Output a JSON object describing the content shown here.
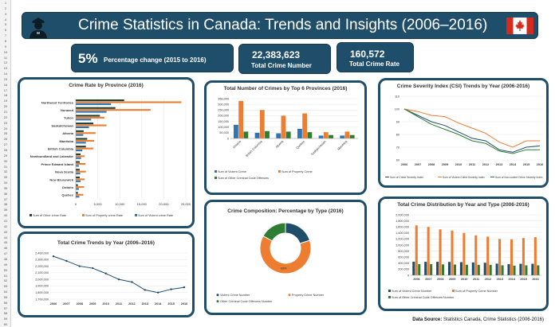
{
  "header": {
    "title": "Crime Statistics in Canada: Trends and Insights (2006–2016)"
  },
  "kpis": {
    "pct_value": "5%",
    "pct_label": "Percentage change (2015 to 2016)",
    "total_number_value": "22,383,623",
    "total_number_label": "Total Crime Number",
    "total_rate_value": "160,572",
    "total_rate_label": "Total Crime Rate"
  },
  "colors": {
    "navy": "#1f4e6b",
    "blue": "#2e75b6",
    "orange": "#ed7d31",
    "green": "#2e7d32",
    "dark_green": "#1b4332"
  },
  "row_numbers": [
    "1",
    "2",
    "3",
    "4",
    "5",
    "6",
    "7",
    "8",
    "9",
    "10",
    "11",
    "12",
    "13",
    "14",
    "15",
    "16",
    "17",
    "18",
    "19",
    "20",
    "21",
    "22",
    "23",
    "24",
    "25",
    "26",
    "27",
    "28",
    "29",
    "30",
    "31",
    "32",
    "33",
    "34",
    "35",
    "36",
    "37",
    "38",
    "39",
    "40",
    "41",
    "42",
    "43",
    "44",
    "45",
    "46",
    "47",
    "48",
    "49",
    "50",
    "51",
    "52",
    "53",
    "54",
    "55",
    "56",
    "57",
    "58",
    "59",
    "60"
  ],
  "source": {
    "label": "Data Source:",
    "text": "Statistics Canada, Crime Statistics (2006-2016)"
  },
  "chart_data": [
    {
      "id": "province_rate",
      "type": "bar",
      "orientation": "horizontal",
      "title": "Crime Rate by Province (2016)",
      "categories": [
        "Northwest Territories",
        "Nunavut",
        "Yukon",
        "Saskatchewan",
        "Alberta",
        "Manitoba",
        "British Columbia",
        "Newfoundland and Labrador",
        "Prince Edward Island",
        "Nova Scotia",
        "New Brunswick",
        "Ontario",
        "Quebec"
      ],
      "series": [
        {
          "name": "Sum of Other crime Rate",
          "color": "#1b4332",
          "values": [
            11000,
            9000,
            5500,
            4000,
            1800,
            2600,
            2300,
            1100,
            900,
            900,
            900,
            500,
            500
          ]
        },
        {
          "name": "Sum of Property crime Rate",
          "color": "#ed7d31",
          "values": [
            24000,
            17000,
            6500,
            7000,
            4500,
            4200,
            4000,
            2000,
            2200,
            2300,
            2000,
            1900,
            1700
          ]
        },
        {
          "name": "Sum of Violent crime Rate",
          "color": "#2e75b6",
          "values": [
            8000,
            7000,
            3500,
            3000,
            1700,
            2300,
            1500,
            1200,
            700,
            1000,
            1100,
            700,
            800
          ]
        }
      ],
      "xticks": [
        "0",
        "5,000",
        "10,000",
        "15,000",
        "20,000",
        "25,000"
      ],
      "xlim": [
        0,
        25000
      ]
    },
    {
      "id": "top6",
      "type": "bar",
      "title": "Total Number of Crimes by Top 6 Provinces (2016)",
      "categories": [
        "Ontario",
        "British Columbia",
        "Alberta",
        "Quebec",
        "Saskatchewan",
        "Manitoba"
      ],
      "series": [
        {
          "name": "Sum of Violent Crime",
          "color": "#2e75b6",
          "values": [
            120000,
            50000,
            45000,
            85000,
            25000,
            25000
          ]
        },
        {
          "name": "Sum of Property Crime",
          "color": "#ed7d31",
          "values": [
            330000,
            250000,
            200000,
            220000,
            55000,
            60000
          ]
        },
        {
          "name": "Sum of Other Criminal Code Offences",
          "color": "#2e7d32",
          "values": [
            60000,
            65000,
            60000,
            55000,
            30000,
            30000
          ]
        }
      ],
      "yticks": [
        "0",
        "50,000",
        "100,000",
        "150,000",
        "200,000",
        "250,000",
        "300,000",
        "350,000"
      ],
      "ylim": [
        0,
        350000
      ]
    },
    {
      "id": "csi",
      "type": "line",
      "title": "Crime Severity Index (CSI) Trends by Year (2006-2016)",
      "x": [
        "2006",
        "2007",
        "2008",
        "2009",
        "2010",
        "2011",
        "2012",
        "2013",
        "2014",
        "2015",
        "2016"
      ],
      "series": [
        {
          "name": "Sum of Crime Severity Index",
          "color": "#1f4e6b",
          "values": [
            100,
            95,
            90,
            87,
            82,
            77,
            75,
            68,
            66,
            70,
            71
          ]
        },
        {
          "name": "Sum of Violent Crime Severity Index",
          "color": "#ed7d31",
          "values": [
            100,
            98,
            95,
            94,
            89,
            85,
            81,
            74,
            70,
            75,
            75
          ]
        },
        {
          "name": "Sum of Non-violent Crime Severity Index",
          "color": "#2e7d32",
          "values": [
            100,
            94,
            88,
            84,
            80,
            75,
            73,
            67,
            65,
            68,
            68
          ]
        }
      ],
      "yticks": [
        "60",
        "70",
        "80",
        "90",
        "100",
        "110"
      ],
      "ylim": [
        60,
        110
      ]
    },
    {
      "id": "total_trend",
      "type": "line",
      "title": "Total Crime Trends by Year (2006–2016)",
      "x": [
        "2006",
        "2007",
        "2008",
        "2009",
        "2010",
        "2011",
        "2012",
        "2013",
        "2014",
        "2015",
        "2016"
      ],
      "series": [
        {
          "name": "Total Crime",
          "color": "#1f4e6b",
          "values": [
            2350000,
            2280000,
            2200000,
            2170000,
            2090000,
            2000000,
            1960000,
            1840000,
            1800000,
            1850000,
            1880000
          ]
        }
      ],
      "yticks": [
        "1,700,000",
        "1,800,000",
        "1,900,000",
        "2,000,000",
        "2,100,000",
        "2,200,000",
        "2,300,000",
        "2,400,000"
      ],
      "ylim": [
        1700000,
        2400000
      ]
    },
    {
      "id": "composition",
      "type": "pie",
      "title": "Crime Composition: Percentage by Type (2016)",
      "categories": [
        "Violent Crime Number",
        "Property Crime Number",
        "Other Criminal Code Offences Number"
      ],
      "colors": [
        "#1f4e6b",
        "#ed7d31",
        "#2e7d32"
      ],
      "values": [
        20,
        63,
        17
      ],
      "labels": [
        "",
        "63%",
        ""
      ]
    },
    {
      "id": "distribution",
      "type": "bar",
      "title": "Total Crime Distribution by Year and Type (2006-2016)",
      "categories": [
        "2006",
        "2007",
        "2008",
        "2009",
        "2010",
        "2011",
        "2012",
        "2013",
        "2014",
        "2015",
        "2016"
      ],
      "series": [
        {
          "name": "Sum of Violent Crime Number",
          "color": "#1f4e6b",
          "values": [
            450000,
            445000,
            445000,
            440000,
            435000,
            425000,
            415000,
            385000,
            370000,
            380000,
            380000
          ]
        },
        {
          "name": "Sum of Property Crime Number",
          "color": "#ed7d31",
          "values": [
            1650000,
            1600000,
            1520000,
            1480000,
            1400000,
            1320000,
            1280000,
            1200000,
            1190000,
            1230000,
            1260000
          ]
        },
        {
          "name": "Sum of Other Criminal Code Offences Number",
          "color": "#2e7d32",
          "values": [
            370000,
            370000,
            360000,
            355000,
            350000,
            345000,
            345000,
            330000,
            320000,
            330000,
            330000
          ]
        }
      ],
      "yticks": [
        "0",
        "200,000",
        "400,000",
        "600,000",
        "800,000",
        "1,000,000",
        "1,200,000",
        "1,400,000",
        "1,600,000",
        "1,800,000",
        "2,000,000"
      ],
      "ylim": [
        0,
        2000000
      ]
    }
  ]
}
